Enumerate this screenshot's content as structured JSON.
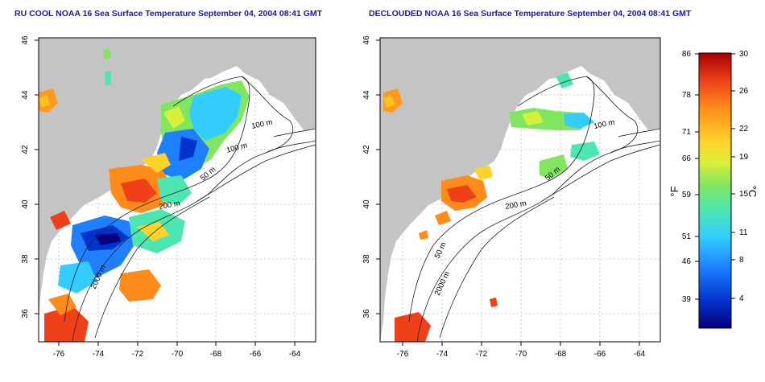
{
  "left_panel": {
    "title": "RU COOL NOAA 16 Sea Surface Temperature September 04, 2004 08:41 GMT"
  },
  "right_panel": {
    "title": "DECLOUDED NOAA 16 Sea Surface Temperature September 04, 2004 08:41 GMT"
  },
  "axes": {
    "lon_ticks": [
      "-76",
      "-74",
      "-72",
      "-70",
      "-68",
      "-66",
      "-64"
    ],
    "lat_ticks": [
      "46",
      "44",
      "42",
      "40",
      "38",
      "36"
    ]
  },
  "contours": {
    "left": [
      "100 m",
      "100 m",
      "50 m",
      "200 m",
      "2000 m"
    ],
    "right": [
      "100 m",
      "50 m",
      "200 m",
      "50 m",
      "2000 m"
    ]
  },
  "colorbar": {
    "f_label": "°F",
    "c_label": "°C",
    "f_ticks": [
      "86",
      "78",
      "71",
      "66",
      "59",
      "51",
      "46",
      "39"
    ],
    "c_ticks": [
      "30",
      "26",
      "22",
      "19",
      "15",
      "11",
      "8",
      "4"
    ],
    "colors": [
      "#08007a",
      "#0033cc",
      "#1f80ff",
      "#33ccff",
      "#4de6b0",
      "#80e660",
      "#d9f03a",
      "#ffd22a",
      "#ff8c1a",
      "#f0401a",
      "#a80000"
    ]
  },
  "colors": {
    "land": "#c4c4c4",
    "ocean": "#ffffff",
    "title": "#1a1a9c"
  }
}
